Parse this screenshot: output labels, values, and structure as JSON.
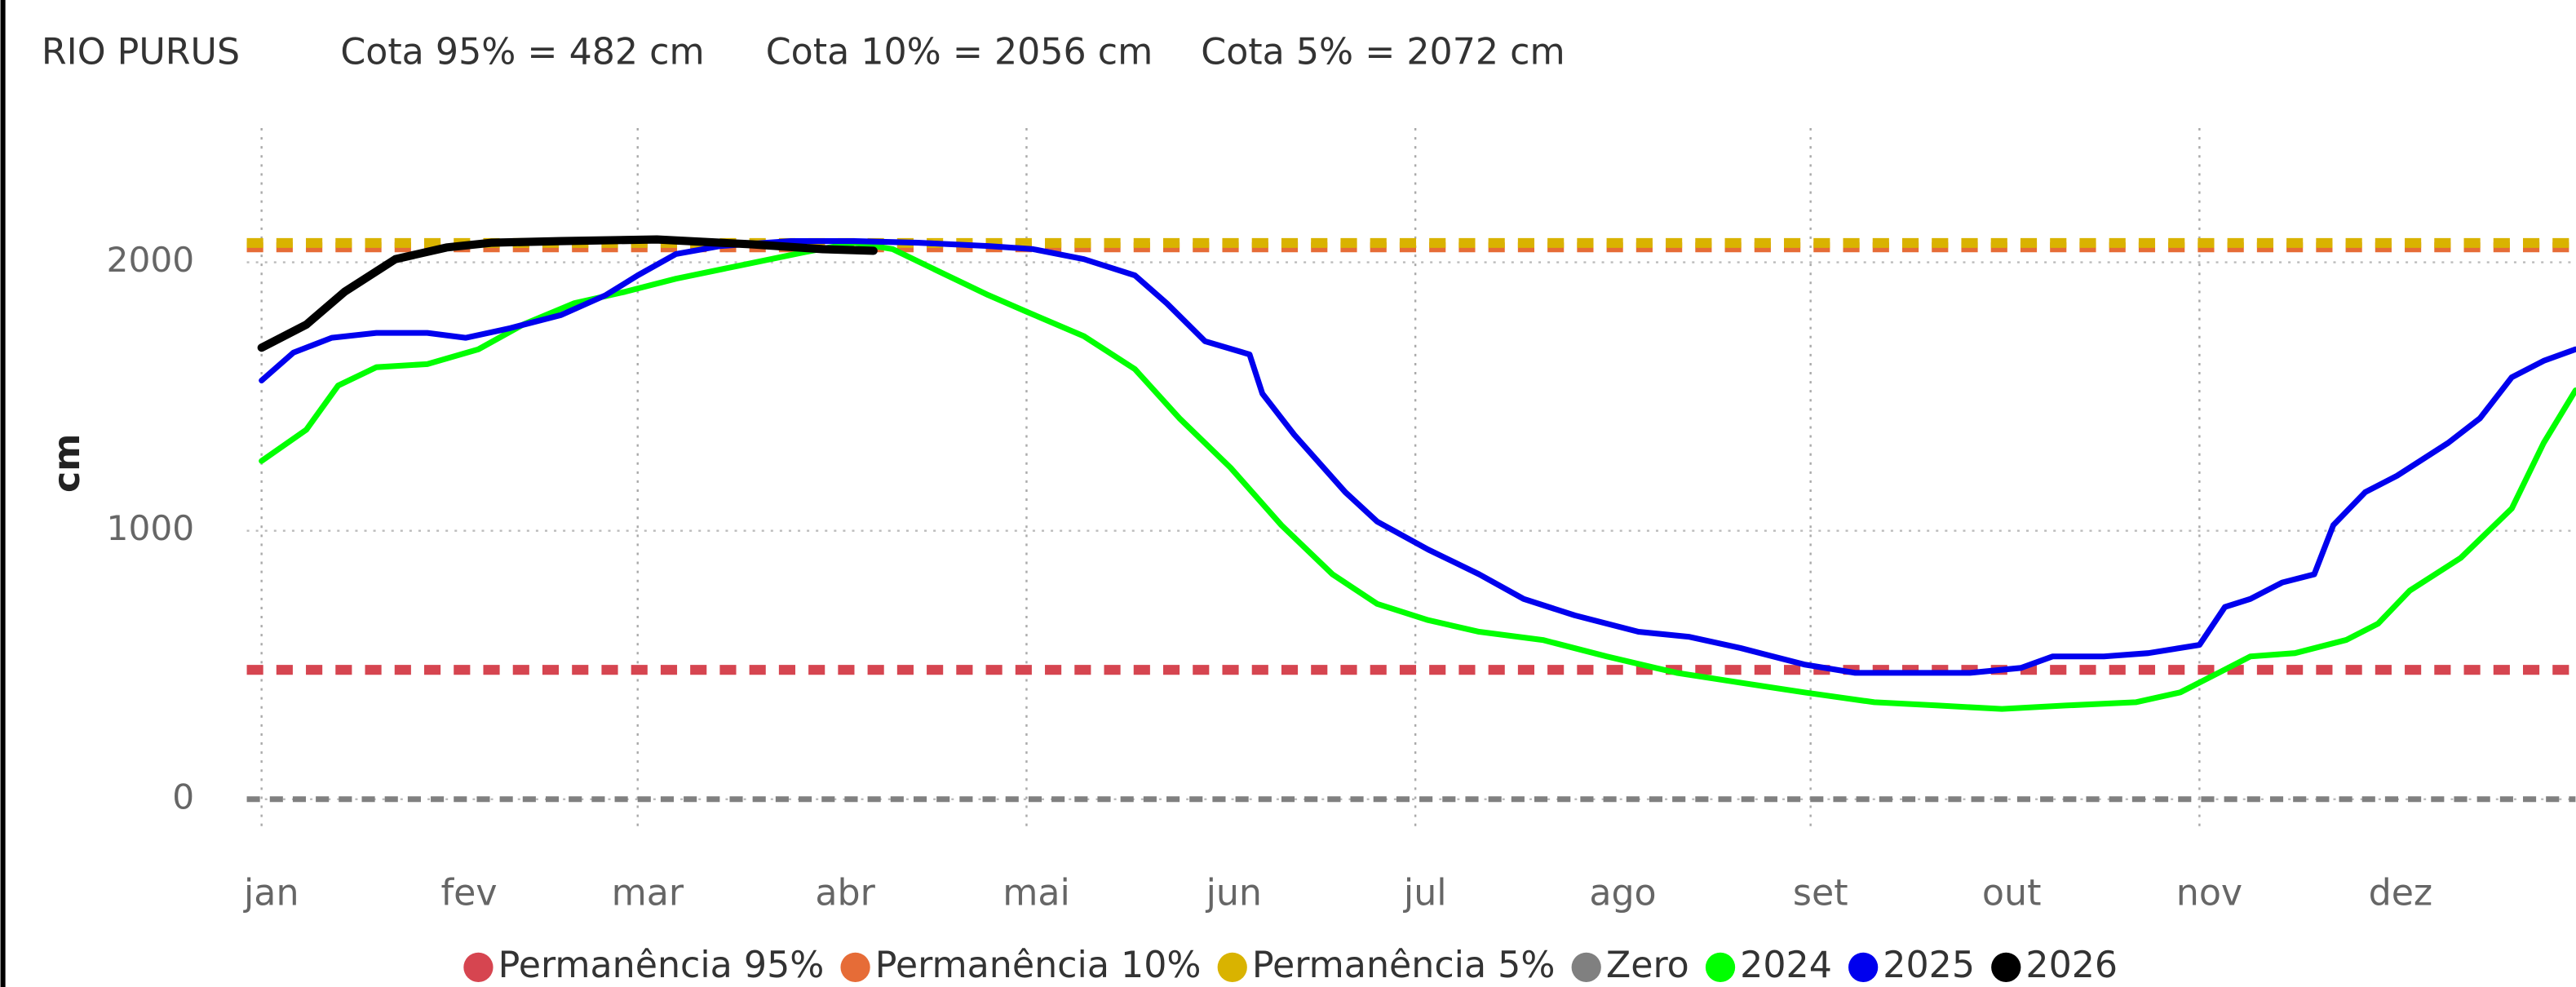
{
  "chart_data": {
    "type": "line",
    "title": "RIO PURUS",
    "annotations": [
      "Cota 95% = 482 cm",
      "Cota 10% = 2056 cm",
      "Cota 5% = 2072 cm"
    ],
    "y_label": "cm",
    "xlim": [
      0,
      363
    ],
    "xticks": [
      {
        "value": 0,
        "label": "jan"
      },
      {
        "value": 31,
        "label": "fev"
      },
      {
        "value": 59,
        "label": "mar"
      },
      {
        "value": 90,
        "label": "abr"
      },
      {
        "value": 120,
        "label": "mai"
      },
      {
        "value": 151,
        "label": "jun"
      },
      {
        "value": 181,
        "label": "jul"
      },
      {
        "value": 212,
        "label": "ago"
      },
      {
        "value": 243,
        "label": "set"
      },
      {
        "value": 273,
        "label": "out"
      },
      {
        "value": 304,
        "label": "nov"
      },
      {
        "value": 334,
        "label": "dez"
      }
    ],
    "ylim": [
      -100,
      2500
    ],
    "yticks": [
      0,
      1000,
      2000
    ],
    "grid": true,
    "legend": "bottom",
    "series": [
      {
        "name": "Permanência 95%",
        "color": "#d64550",
        "value": 482
      },
      {
        "name": "Permanência 10%",
        "color": "#e66c37",
        "value": 2056
      },
      {
        "name": "Permanência 5%",
        "color": "#d9b300",
        "value": 2072
      },
      {
        "name": "Zero",
        "color": "#808080",
        "value": 0
      },
      {
        "name": "2024",
        "color": "#00ff00",
        "x": [
          0,
          7,
          12,
          18,
          26,
          34,
          41,
          49,
          57,
          65,
          75,
          85,
          93,
          99,
          106,
          114,
          120,
          129,
          137,
          144,
          152,
          160,
          168,
          175,
          183,
          191,
          201,
          211,
          222,
          232,
          242,
          253,
          263,
          273,
          283,
          294,
          301,
          307,
          312,
          319,
          327,
          332,
          337,
          345,
          353,
          358,
          363
        ],
        "values": [
          1260,
          1376,
          1541,
          1609,
          1621,
          1676,
          1768,
          1847,
          1890,
          1939,
          1988,
          2037,
          2073,
          2049,
          1969,
          1878,
          1816,
          1725,
          1602,
          1419,
          1235,
          1021,
          838,
          728,
          667,
          624,
          593,
          532,
          471,
          434,
          398,
          361,
          349,
          336,
          349,
          361,
          398,
          471,
          532,
          544,
          593,
          654,
          777,
          899,
          1083,
          1327,
          1523
        ]
      },
      {
        "name": "2025",
        "color": "#0000ee",
        "x": [
          0,
          5,
          11,
          18,
          26,
          32,
          39,
          47,
          54,
          59,
          65,
          72,
          83,
          93,
          103,
          114,
          121,
          129,
          137,
          142,
          148,
          155,
          157,
          162,
          170,
          175,
          183,
          191,
          198,
          206,
          216,
          224,
          232,
          242,
          250,
          258,
          268,
          276,
          281,
          289,
          296,
          304,
          308,
          312,
          317,
          322,
          325,
          330,
          335,
          343,
          348,
          353,
          358,
          363
        ],
        "values": [
          1560,
          1664,
          1719,
          1737,
          1737,
          1719,
          1755,
          1804,
          1878,
          1951,
          2031,
          2061,
          2079,
          2079,
          2073,
          2061,
          2049,
          2012,
          1951,
          1847,
          1706,
          1657,
          1511,
          1358,
          1144,
          1034,
          930,
          838,
          746,
          685,
          624,
          605,
          563,
          502,
          471,
          471,
          471,
          489,
          532,
          532,
          544,
          575,
          716,
          746,
          807,
          838,
          1021,
          1144,
          1205,
          1327,
          1419,
          1572,
          1633,
          1676
        ]
      },
      {
        "name": "2026",
        "color": "#000000",
        "x": [
          0,
          7,
          13,
          21,
          29,
          36,
          47,
          62,
          77,
          88,
          96
        ],
        "values": [
          1682,
          1768,
          1890,
          2012,
          2055,
          2073,
          2079,
          2085,
          2067,
          2049,
          2043
        ]
      }
    ]
  }
}
